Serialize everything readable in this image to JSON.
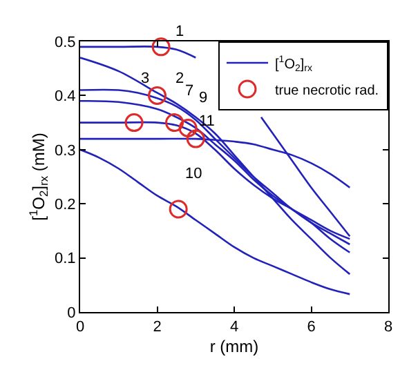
{
  "chart_data": {
    "type": "line",
    "xlabel": "r (mm)",
    "ylabel": "[$^{1}$O$_{2}$]$_{rx}$ (mM)",
    "xlim": [
      0,
      8
    ],
    "xticks": [
      0,
      2,
      4,
      6,
      8
    ],
    "ylim": [
      0,
      0.5
    ],
    "yticks": [
      0,
      0.1,
      0.2,
      0.3,
      0.4,
      0.5
    ],
    "legend": "top right",
    "series": [
      {
        "name": "[$^{1}$O$_{2}$]$_{rx}$",
        "marker": "none",
        "color": "#2222bb",
        "x": [
          0,
          1,
          2,
          2.5,
          3,
          3.5,
          4,
          4.7,
          5,
          5.5,
          6,
          6.5,
          7
        ],
        "values": [
          0.49,
          0.49,
          0.49,
          0.485,
          0.47,
          null,
          null,
          0.36,
          0.33,
          0.28,
          0.23,
          0.185,
          0.14
        ]
      },
      {
        "marker": "none",
        "color": "#2222bb",
        "x": [
          0,
          1,
          2,
          2.5,
          3,
          3.5,
          4,
          4.5,
          5,
          5.5,
          6,
          6.5,
          7
        ],
        "values": [
          0.47,
          0.445,
          0.405,
          0.385,
          0.36,
          0.33,
          0.29,
          0.25,
          0.21,
          0.17,
          0.135,
          0.1,
          0.07
        ]
      },
      {
        "marker": "none",
        "color": "#2222bb",
        "x": [
          0,
          1,
          1.5,
          2,
          2.5,
          3,
          3.5,
          4,
          4.5,
          5,
          5.5,
          6,
          6.5,
          7
        ],
        "values": [
          0.41,
          0.41,
          0.405,
          0.395,
          0.38,
          0.355,
          0.32,
          0.285,
          0.25,
          0.22,
          0.19,
          0.165,
          0.135,
          0.11
        ]
      },
      {
        "marker": "none",
        "color": "#2222bb",
        "x": [
          0,
          1,
          2,
          2.5,
          3,
          3.5,
          4,
          4.5,
          5,
          5.5,
          6,
          6.5,
          7
        ],
        "values": [
          0.39,
          0.388,
          0.375,
          0.36,
          0.34,
          0.31,
          0.28,
          0.245,
          0.215,
          0.19,
          0.165,
          0.145,
          0.125
        ]
      },
      {
        "marker": "none",
        "color": "#2222bb",
        "x": [
          0,
          1,
          2,
          2.5,
          3,
          3.5,
          4,
          4.5,
          5,
          5.5,
          6,
          6.5,
          7
        ],
        "values": [
          0.35,
          0.35,
          0.35,
          0.345,
          0.33,
          0.3,
          0.265,
          0.235,
          0.21,
          0.19,
          0.17,
          0.15,
          0.135
        ]
      },
      {
        "marker": "none",
        "color": "#2222bb",
        "x": [
          0,
          1,
          2,
          3,
          3.5,
          4,
          4.5,
          5,
          5.5,
          6,
          6.5,
          7
        ],
        "values": [
          0.32,
          0.32,
          0.32,
          0.32,
          0.318,
          0.315,
          0.31,
          0.3,
          0.29,
          0.275,
          0.255,
          0.23
        ]
      },
      {
        "marker": "none",
        "color": "#2222bb",
        "x": [
          0,
          0.5,
          1,
          1.5,
          2,
          2.5,
          3,
          3.5,
          4,
          4.5,
          5,
          5.5,
          6,
          6.5,
          7
        ],
        "values": [
          0.3,
          0.285,
          0.265,
          0.24,
          0.215,
          0.195,
          0.17,
          0.145,
          0.12,
          0.1,
          0.085,
          0.07,
          0.055,
          0.042,
          0.033
        ]
      },
      {
        "name": "true necrotic rad.",
        "type": "scatter",
        "marker": "circle",
        "color": "#dd2a2a",
        "x": [
          2.1,
          2.0,
          1.4,
          2.45,
          2.8,
          3.0,
          2.55
        ],
        "values": [
          0.49,
          0.4,
          0.35,
          0.35,
          0.34,
          0.32,
          0.19
        ]
      }
    ],
    "annotations": [
      "1",
      "2",
      {
        "text": "3",
        "x": 1.7,
        "y": 0.43
      },
      "7",
      "9",
      "11",
      "10"
    ]
  }
}
